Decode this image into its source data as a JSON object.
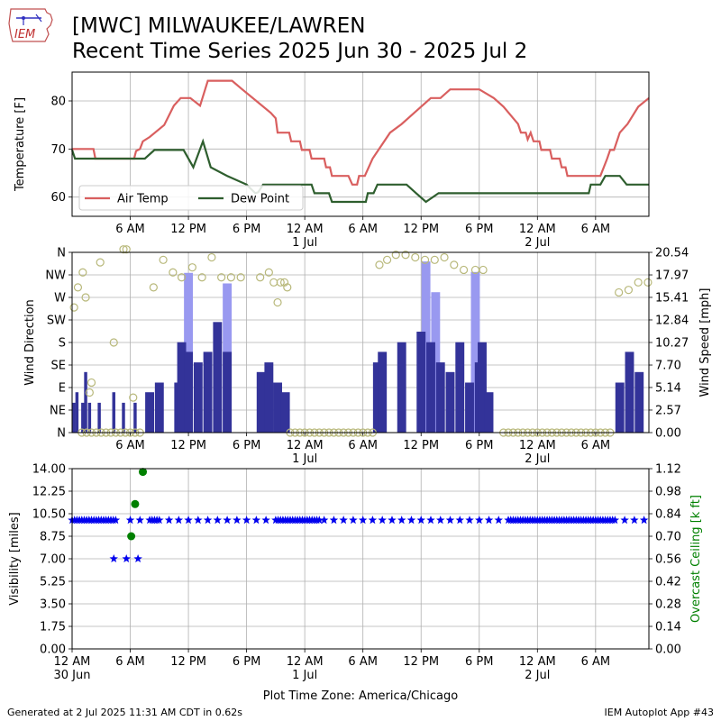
{
  "header": {
    "title_line1": "[MWC] MILWAUKEE/LAWREN",
    "title_line2": "Recent Time Series 2025 Jun 30 - 2025 Jul 2",
    "logo_text": "IEM"
  },
  "footer": {
    "left": "Generated at 2 Jul 2025 11:31 AM CDT in 0.62s",
    "right": "IEM Autoplot App #43"
  },
  "colors": {
    "air_temp": "#d95f5f",
    "dew_point": "#2e5e2e",
    "wind_speed": "#333399",
    "wind_gust": "#9999f0",
    "wind_dir": "#b8b87a",
    "visibility": "#0000ee",
    "ceiling": "#008000",
    "grid": "#b0b0b0"
  },
  "chart_data": [
    {
      "type": "line",
      "ylabel": "Temperature [F]",
      "ylim": [
        56,
        86
      ],
      "yticks": [
        60,
        70,
        80
      ],
      "xlim_hours": [
        0,
        59.5
      ],
      "xticks": [
        6,
        12,
        18,
        24,
        30,
        36,
        42,
        48,
        54
      ],
      "xtick_labels": [
        "6 AM",
        "12 PM",
        "6 PM",
        "12 AM\n1 Jul",
        "6 AM",
        "12 PM",
        "6 PM",
        "12 AM\n2 Jul",
        "6 AM"
      ],
      "legend": "lower-left",
      "series": [
        {
          "name": "Air Temp",
          "points": [
            [
              0,
              70
            ],
            [
              2.2,
              70
            ],
            [
              2.4,
              68
            ],
            [
              6.4,
              68
            ],
            [
              6.6,
              69.6
            ],
            [
              7,
              70
            ],
            [
              7.3,
              71.6
            ],
            [
              8,
              72.5
            ],
            [
              9.5,
              75
            ],
            [
              10.5,
              79
            ],
            [
              11.2,
              80.6
            ],
            [
              12.2,
              80.6
            ],
            [
              13.2,
              79
            ],
            [
              14,
              84.2
            ],
            [
              16.5,
              84.2
            ],
            [
              17.5,
              82.5
            ],
            [
              19,
              80
            ],
            [
              20.5,
              77.5
            ],
            [
              21,
              76.4
            ],
            [
              21.2,
              73.4
            ],
            [
              22.4,
              73.4
            ],
            [
              22.6,
              71.6
            ],
            [
              23.5,
              71.6
            ],
            [
              23.7,
              69.8
            ],
            [
              24.5,
              69.8
            ],
            [
              24.7,
              68
            ],
            [
              26,
              68
            ],
            [
              26.2,
              66.2
            ],
            [
              26.6,
              66.2
            ],
            [
              26.8,
              64.4
            ],
            [
              28.5,
              64.4
            ],
            [
              28.9,
              62.6
            ],
            [
              29.4,
              62.6
            ],
            [
              29.6,
              64.4
            ],
            [
              30.2,
              64.4
            ],
            [
              31,
              68
            ],
            [
              32.8,
              73.4
            ],
            [
              34,
              75.2
            ],
            [
              36,
              78.8
            ],
            [
              37,
              80.6
            ],
            [
              38,
              80.6
            ],
            [
              39,
              82.4
            ],
            [
              42,
              82.4
            ],
            [
              43.5,
              80.6
            ],
            [
              44.5,
              78.8
            ],
            [
              46,
              75.2
            ],
            [
              46.3,
              73.4
            ],
            [
              46.8,
              73.4
            ],
            [
              47,
              72
            ],
            [
              47.3,
              73.4
            ],
            [
              47.6,
              71.6
            ],
            [
              48.2,
              71.6
            ],
            [
              48.4,
              69.8
            ],
            [
              49.3,
              69.8
            ],
            [
              49.5,
              68
            ],
            [
              50.3,
              68
            ],
            [
              50.5,
              66.2
            ],
            [
              50.9,
              66.2
            ],
            [
              51.1,
              64.4
            ],
            [
              54.5,
              64.4
            ],
            [
              55.2,
              68
            ],
            [
              55.5,
              69.8
            ],
            [
              55.9,
              69.8
            ],
            [
              56.5,
              73.4
            ],
            [
              57.3,
              75.2
            ],
            [
              58.4,
              78.8
            ],
            [
              59.5,
              80.6
            ]
          ]
        },
        {
          "name": "Dew Point",
          "points": [
            [
              0,
              69.8
            ],
            [
              0.3,
              68
            ],
            [
              7.5,
              68
            ],
            [
              8.5,
              69.8
            ],
            [
              11.5,
              69.8
            ],
            [
              12.5,
              66.2
            ],
            [
              13.5,
              71.6
            ],
            [
              14.3,
              66.2
            ],
            [
              16,
              64.4
            ],
            [
              18,
              62.6
            ],
            [
              18.9,
              60.8
            ],
            [
              19.2,
              61
            ],
            [
              19.7,
              62.6
            ],
            [
              24.7,
              62.6
            ],
            [
              25,
              60.8
            ],
            [
              26.5,
              60.8
            ],
            [
              26.8,
              59
            ],
            [
              30.3,
              59
            ],
            [
              30.5,
              60.8
            ],
            [
              31.1,
              60.8
            ],
            [
              31.5,
              62.6
            ],
            [
              34.5,
              62.6
            ],
            [
              35.5,
              60.8
            ],
            [
              36.5,
              59
            ],
            [
              37.8,
              60.8
            ],
            [
              53.3,
              60.8
            ],
            [
              53.5,
              62.6
            ],
            [
              54.5,
              62.6
            ],
            [
              55,
              64.4
            ],
            [
              56.5,
              64.4
            ],
            [
              57.2,
              62.6
            ],
            [
              59.5,
              62.6
            ]
          ]
        }
      ]
    },
    {
      "type": "bar",
      "ylabel": "Wind Direction",
      "ylabel_right": "Wind Speed [mph]",
      "ylim": [
        0,
        360
      ],
      "ylim_right": [
        0,
        20.54
      ],
      "yticks_left": [
        0,
        45,
        90,
        135,
        180,
        225,
        270,
        315,
        360
      ],
      "ytick_labels_left": [
        "N",
        "NE",
        "E",
        "SE",
        "S",
        "SW",
        "W",
        "NW",
        "N"
      ],
      "yticks_right": [
        0,
        2.57,
        5.14,
        7.7,
        10.27,
        12.84,
        15.41,
        17.97,
        20.54
      ],
      "ytick_labels_right": [
        "0.00",
        "2.57",
        "5.14",
        "7.70",
        "10.27",
        "12.84",
        "15.41",
        "17.97",
        "20.54"
      ],
      "xlim_hours": [
        0,
        59.5
      ],
      "xticks": [
        6,
        12,
        18,
        24,
        30,
        36,
        42,
        48,
        54
      ],
      "xtick_labels": [
        "6 AM",
        "12 PM",
        "6 PM",
        "12 AM\n1 Jul",
        "6 AM",
        "12 PM",
        "6 PM",
        "12 AM\n2 Jul",
        "6 AM"
      ],
      "speed_bars": [
        [
          0.2,
          3.4
        ],
        [
          0.5,
          4.6
        ],
        [
          1.1,
          3.4
        ],
        [
          1.4,
          6.9
        ],
        [
          1.8,
          3.4
        ],
        [
          2.8,
          3.4
        ],
        [
          4.3,
          4.6
        ],
        [
          5.3,
          3.4
        ],
        [
          6.5,
          3.4
        ],
        [
          8,
          4.6
        ],
        [
          9,
          5.7
        ],
        [
          11,
          5.7
        ],
        [
          11.3,
          10.3
        ],
        [
          12,
          9.2
        ],
        [
          13,
          8
        ],
        [
          14,
          9.2
        ],
        [
          15,
          12.6
        ],
        [
          16,
          9.2
        ],
        [
          19.5,
          6.9
        ],
        [
          20.3,
          8
        ],
        [
          21.2,
          5.7
        ],
        [
          22,
          4.6
        ],
        [
          31.5,
          8
        ],
        [
          32,
          9.2
        ],
        [
          34,
          10.3
        ],
        [
          36,
          11.5
        ],
        [
          37,
          10.3
        ],
        [
          38,
          8
        ],
        [
          39,
          6.9
        ],
        [
          40,
          10.3
        ],
        [
          41,
          5.7
        ],
        [
          42,
          8
        ],
        [
          42.3,
          10.3
        ],
        [
          43,
          4.6
        ],
        [
          56.5,
          5.7
        ],
        [
          57.5,
          9.2
        ],
        [
          58.5,
          6.9
        ]
      ],
      "gust_bars": [
        [
          12,
          18.2
        ],
        [
          16,
          17
        ],
        [
          36.5,
          19.5
        ],
        [
          37.5,
          16
        ],
        [
          41.6,
          18.3
        ]
      ],
      "direction_points": [
        [
          0.2,
          250
        ],
        [
          0.6,
          290
        ],
        [
          1.1,
          320
        ],
        [
          1.4,
          270
        ],
        [
          1.8,
          80
        ],
        [
          2,
          100
        ],
        [
          2.9,
          340
        ],
        [
          4.3,
          180
        ],
        [
          5.3,
          375
        ],
        [
          5.6,
          385
        ],
        [
          6.3,
          70
        ],
        [
          8.4,
          290
        ],
        [
          9.4,
          345
        ],
        [
          10.4,
          320
        ],
        [
          11.3,
          310
        ],
        [
          12.4,
          330
        ],
        [
          13.4,
          310
        ],
        [
          14.4,
          350
        ],
        [
          15.4,
          310
        ],
        [
          16.4,
          310
        ],
        [
          17.4,
          310
        ],
        [
          19.4,
          310
        ],
        [
          20.3,
          320
        ],
        [
          20.8,
          300
        ],
        [
          21.2,
          260
        ],
        [
          21.5,
          300
        ],
        [
          21.9,
          300
        ],
        [
          22.2,
          290
        ],
        [
          31.7,
          335
        ],
        [
          32.5,
          345
        ],
        [
          33.4,
          355
        ],
        [
          34.4,
          355
        ],
        [
          35.4,
          350
        ],
        [
          36.4,
          345
        ],
        [
          37.4,
          345
        ],
        [
          38.4,
          350
        ],
        [
          39.4,
          335
        ],
        [
          40.4,
          325
        ],
        [
          41.6,
          325
        ],
        [
          42.4,
          325
        ],
        [
          56.4,
          280
        ],
        [
          57.4,
          285
        ],
        [
          58.4,
          300
        ],
        [
          59.4,
          300
        ]
      ],
      "calm_segments": [
        [
          1,
          7
        ],
        [
          22.5,
          31
        ],
        [
          44.5,
          55.5
        ]
      ]
    },
    {
      "type": "scatter",
      "ylabel": "Visibility [miles]",
      "ylabel_right": "Overcast Ceiling [k ft]",
      "ylim": [
        0,
        14
      ],
      "ylim_right": [
        0,
        1.12
      ],
      "yticks_left": [
        0,
        1.75,
        3.5,
        5.25,
        7,
        8.75,
        10.5,
        12.25,
        14
      ],
      "ytick_labels_left": [
        "0.00",
        "1.75",
        "3.50",
        "5.25",
        "7.00",
        "8.75",
        "10.50",
        "12.25",
        "14.00"
      ],
      "yticks_right": [
        0,
        0.14,
        0.28,
        0.42,
        0.56,
        0.7,
        0.84,
        0.98,
        1.12
      ],
      "ytick_labels_right": [
        "0.00",
        "0.14",
        "0.28",
        "0.42",
        "0.56",
        "0.70",
        "0.84",
        "0.98",
        "1.12"
      ],
      "xlim_hours": [
        0,
        59.5
      ],
      "xticks": [
        0,
        6,
        12,
        18,
        24,
        30,
        36,
        42,
        48,
        54
      ],
      "xtick_labels": [
        "12 AM\n30 Jun",
        "6 AM",
        "12 PM",
        "6 PM",
        "12 AM\n1 Jul",
        "6 AM",
        "12 PM",
        "6 PM",
        "12 AM\n2 Jul",
        "6 AM"
      ],
      "xlabel": "Plot Time Zone: America/Chicago",
      "visibility_constant": 10,
      "visibility_dense_ranges": [
        [
          0,
          4.5
        ],
        [
          8,
          8.8
        ],
        [
          21,
          25.5
        ],
        [
          45.2,
          55.8
        ]
      ],
      "visibility_sparse_step": 1,
      "visibility_low": [
        [
          4.3,
          7
        ],
        [
          5.6,
          7
        ],
        [
          6.8,
          7
        ]
      ],
      "ceiling_points": [
        [
          6.1,
          0.7
        ],
        [
          6.5,
          0.9
        ],
        [
          7.3,
          1.1
        ]
      ]
    }
  ]
}
